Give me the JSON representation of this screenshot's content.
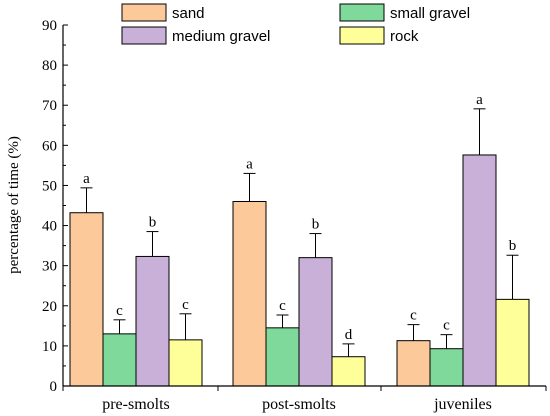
{
  "chart_data": {
    "type": "bar",
    "categories": [
      "pre-smolts",
      "post-smolts",
      "juveniles"
    ],
    "ylabel": "percentage of time (%)",
    "xlabel": "",
    "ylim": [
      0,
      90
    ],
    "yticks": [
      0,
      10,
      20,
      30,
      40,
      50,
      60,
      70,
      80,
      90
    ],
    "grid": false,
    "legend_position": "top",
    "series": [
      {
        "name": "sand",
        "color": "#fcc99a",
        "values": [
          43.2,
          46.0,
          11.3
        ],
        "errors": [
          6.2,
          7.0,
          4.0
        ],
        "labels": [
          "a",
          "a",
          "c"
        ]
      },
      {
        "name": "small gravel",
        "color": "#7ed99a",
        "values": [
          13.0,
          14.5,
          9.3
        ],
        "errors": [
          3.5,
          3.2,
          3.5
        ],
        "labels": [
          "c",
          "c",
          "c"
        ]
      },
      {
        "name": "medium gravel",
        "color": "#c8b0d8",
        "values": [
          32.3,
          32.0,
          57.6
        ],
        "errors": [
          6.2,
          6.0,
          11.5
        ],
        "labels": [
          "b",
          "b",
          "a"
        ]
      },
      {
        "name": "rock",
        "color": "#ffff99",
        "values": [
          11.5,
          7.3,
          21.6
        ],
        "errors": [
          6.5,
          3.2,
          11.0
        ],
        "labels": [
          "c",
          "d",
          "b"
        ]
      }
    ]
  }
}
